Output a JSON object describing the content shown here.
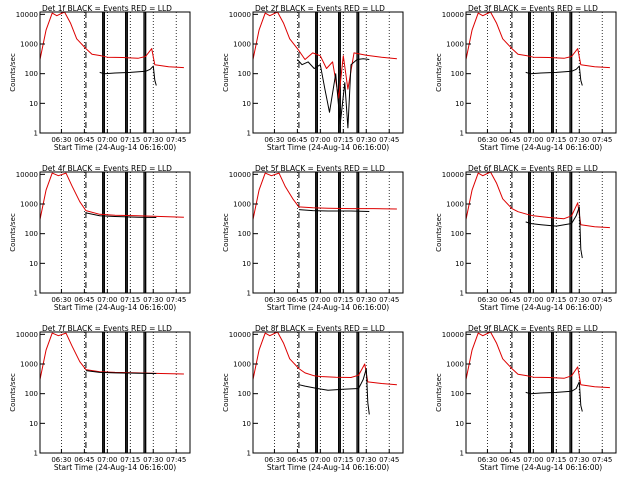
{
  "colors": {
    "events": "#000000",
    "lld": "#dd0000",
    "axes": "#000000"
  },
  "chart_data": [
    {
      "type": "line",
      "title": "Det  1f  BLACK = Events  RED = LLD",
      "xlabel": "Start Time (24-Aug-14 06:16:00)",
      "ylabel": "Counts/sec",
      "yscale": "log",
      "ylim": [
        1,
        12000
      ],
      "xlim": [
        "06:16",
        "07:54"
      ],
      "x_ticks": [
        "06:30",
        "06:45",
        "07:00",
        "07:15",
        "07:30",
        "07:45"
      ],
      "y_ticks": [
        "1",
        "10",
        "100",
        "1000",
        "10000"
      ],
      "series": [
        {
          "name": "LLD",
          "x": [
            "06:16",
            "06:20",
            "06:24",
            "06:27",
            "06:32",
            "06:36",
            "06:40",
            "06:46",
            "06:50",
            "06:56",
            "07:00",
            "07:10",
            "07:20",
            "07:25",
            "07:29",
            "07:31",
            "07:40",
            "07:50"
          ],
          "values": [
            300,
            3000,
            11000,
            9000,
            12000,
            5000,
            1500,
            700,
            450,
            400,
            360,
            350,
            330,
            380,
            700,
            200,
            170,
            160
          ]
        },
        {
          "name": "Events",
          "x": [
            "06:55",
            "06:58",
            "07:05",
            "07:15",
            "07:25",
            "07:28",
            "07:30",
            "07:31",
            "07:32"
          ],
          "values": [
            110,
            100,
            105,
            110,
            120,
            140,
            180,
            60,
            40
          ]
        }
      ]
    },
    {
      "type": "line",
      "title": "Det  2f  BLACK = Events  RED = LLD",
      "xlabel": "Start Time (24-Aug-14 06:16:00)",
      "ylabel": "Counts/sec",
      "yscale": "log",
      "ylim": [
        1,
        12000
      ],
      "xlim": [
        "06:16",
        "07:54"
      ],
      "x_ticks": [
        "06:30",
        "06:45",
        "07:00",
        "07:15",
        "07:30",
        "07:45"
      ],
      "y_ticks": [
        "1",
        "10",
        "100",
        "1000",
        "10000"
      ],
      "series": [
        {
          "name": "LLD",
          "x": [
            "06:16",
            "06:20",
            "06:24",
            "06:27",
            "06:32",
            "06:36",
            "06:40",
            "06:46",
            "06:50",
            "06:55",
            "07:00",
            "07:04",
            "07:08",
            "07:12",
            "07:15",
            "07:18",
            "07:22",
            "07:30",
            "07:40",
            "07:50"
          ],
          "values": [
            300,
            3000,
            11000,
            9000,
            12000,
            5000,
            1500,
            600,
            300,
            500,
            400,
            150,
            250,
            15,
            400,
            30,
            500,
            420,
            360,
            320
          ]
        },
        {
          "name": "Events",
          "x": [
            "06:45",
            "06:48",
            "06:52",
            "06:56",
            "07:00",
            "07:03",
            "07:06",
            "07:10",
            "07:13",
            "07:16",
            "07:18",
            "07:20",
            "07:24",
            "07:28",
            "07:32"
          ],
          "values": [
            300,
            200,
            250,
            150,
            200,
            30,
            5,
            100,
            2,
            50,
            1.5,
            200,
            300,
            320,
            300
          ]
        }
      ]
    },
    {
      "type": "line",
      "title": "Det  3f  BLACK = Events  RED = LLD",
      "xlabel": "Start Time (24-Aug-14 06:16:00)",
      "ylabel": "Counts/sec",
      "yscale": "log",
      "ylim": [
        1,
        12000
      ],
      "xlim": [
        "06:16",
        "07:54"
      ],
      "x_ticks": [
        "06:30",
        "06:45",
        "07:00",
        "07:15",
        "07:30",
        "07:45"
      ],
      "y_ticks": [
        "1",
        "10",
        "100",
        "1000",
        "10000"
      ],
      "series": [
        {
          "name": "LLD",
          "x": [
            "06:16",
            "06:20",
            "06:24",
            "06:27",
            "06:32",
            "06:36",
            "06:40",
            "06:46",
            "06:50",
            "06:56",
            "07:00",
            "07:10",
            "07:20",
            "07:25",
            "07:29",
            "07:31",
            "07:40",
            "07:50"
          ],
          "values": [
            300,
            3000,
            11000,
            9000,
            12000,
            5000,
            1500,
            700,
            450,
            400,
            360,
            350,
            330,
            380,
            700,
            200,
            170,
            160
          ]
        },
        {
          "name": "Events",
          "x": [
            "06:55",
            "06:58",
            "07:05",
            "07:15",
            "07:25",
            "07:28",
            "07:30",
            "07:31",
            "07:32"
          ],
          "values": [
            110,
            100,
            105,
            110,
            120,
            140,
            180,
            60,
            40
          ]
        }
      ]
    },
    {
      "type": "line",
      "title": "Det  4f  BLACK = Events  RED = LLD",
      "xlabel": "Start Time (24-Aug-14 06:16:00)",
      "ylabel": "Counts/sec",
      "yscale": "log",
      "ylim": [
        1,
        12000
      ],
      "xlim": [
        "06:16",
        "07:54"
      ],
      "x_ticks": [
        "06:30",
        "06:45",
        "07:00",
        "07:15",
        "07:30",
        "07:45"
      ],
      "y_ticks": [
        "1",
        "10",
        "100",
        "1000",
        "10000"
      ],
      "series": [
        {
          "name": "LLD",
          "x": [
            "06:16",
            "06:20",
            "06:24",
            "06:28",
            "06:33",
            "06:37",
            "06:42",
            "06:46",
            "06:55",
            "07:05",
            "07:20",
            "07:35",
            "07:50"
          ],
          "values": [
            300,
            3000,
            11000,
            9000,
            11000,
            4000,
            1200,
            600,
            450,
            420,
            400,
            380,
            360
          ]
        },
        {
          "name": "Events",
          "x": [
            "06:46",
            "06:55",
            "07:05",
            "07:20",
            "07:32"
          ],
          "values": [
            500,
            400,
            380,
            360,
            350
          ]
        }
      ]
    },
    {
      "type": "line",
      "title": "Det  5f  BLACK = Events  RED = LLD",
      "xlabel": "Start Time (24-Aug-14 06:16:00)",
      "ylabel": "Counts/sec",
      "yscale": "log",
      "ylim": [
        1,
        12000
      ],
      "xlim": [
        "06:16",
        "07:54"
      ],
      "x_ticks": [
        "06:30",
        "06:45",
        "07:00",
        "07:15",
        "07:30",
        "07:45"
      ],
      "y_ticks": [
        "1",
        "10",
        "100",
        "1000",
        "10000"
      ],
      "series": [
        {
          "name": "LLD",
          "x": [
            "06:16",
            "06:20",
            "06:24",
            "06:28",
            "06:33",
            "06:37",
            "06:42",
            "06:46",
            "06:55",
            "07:05",
            "07:20",
            "07:35",
            "07:50"
          ],
          "values": [
            300,
            3000,
            11000,
            9000,
            11000,
            4000,
            1500,
            800,
            750,
            720,
            700,
            700,
            680
          ]
        },
        {
          "name": "Events",
          "x": [
            "06:46",
            "06:55",
            "07:05",
            "07:20",
            "07:32"
          ],
          "values": [
            650,
            600,
            580,
            580,
            560
          ]
        }
      ]
    },
    {
      "type": "line",
      "title": "Det  6f  BLACK = Events  RED = LLD",
      "xlabel": "Start Time (24-Aug-14 06:16:00)",
      "ylabel": "Counts/sec",
      "yscale": "log",
      "ylim": [
        1,
        12000
      ],
      "xlim": [
        "06:16",
        "07:54"
      ],
      "x_ticks": [
        "06:30",
        "06:45",
        "07:00",
        "07:15",
        "07:30",
        "07:45"
      ],
      "y_ticks": [
        "1",
        "10",
        "100",
        "1000",
        "10000"
      ],
      "series": [
        {
          "name": "LLD",
          "x": [
            "06:16",
            "06:20",
            "06:24",
            "06:27",
            "06:32",
            "06:36",
            "06:40",
            "06:46",
            "06:50",
            "06:56",
            "07:00",
            "07:10",
            "07:20",
            "07:25",
            "07:29",
            "07:31",
            "07:40",
            "07:50"
          ],
          "values": [
            300,
            3000,
            11000,
            9000,
            12000,
            5000,
            1500,
            700,
            550,
            450,
            400,
            350,
            320,
            400,
            1100,
            200,
            170,
            160
          ]
        },
        {
          "name": "Events",
          "x": [
            "06:55",
            "06:58",
            "07:05",
            "07:15",
            "07:25",
            "07:28",
            "07:30",
            "07:31",
            "07:32"
          ],
          "values": [
            250,
            220,
            200,
            180,
            220,
            400,
            800,
            30,
            15
          ]
        }
      ]
    },
    {
      "type": "line",
      "title": "Det  7f  BLACK = Events  RED = LLD",
      "xlabel": "Start Time (24-Aug-14 06:16:00)",
      "ylabel": "Counts/sec",
      "yscale": "log",
      "ylim": [
        1,
        12000
      ],
      "xlim": [
        "06:16",
        "07:54"
      ],
      "x_ticks": [
        "06:30",
        "06:45",
        "07:00",
        "07:15",
        "07:30",
        "07:45"
      ],
      "y_ticks": [
        "1",
        "10",
        "100",
        "1000",
        "10000"
      ],
      "series": [
        {
          "name": "LLD",
          "x": [
            "06:16",
            "06:20",
            "06:24",
            "06:28",
            "06:33",
            "06:37",
            "06:42",
            "06:46",
            "06:55",
            "07:05",
            "07:20",
            "07:35",
            "07:50"
          ],
          "values": [
            300,
            3000,
            11000,
            9000,
            11000,
            4000,
            1200,
            650,
            550,
            520,
            500,
            480,
            460
          ]
        },
        {
          "name": "Events",
          "x": [
            "06:46",
            "06:55",
            "07:05",
            "07:20",
            "07:32"
          ],
          "values": [
            600,
            520,
            500,
            490,
            480
          ]
        }
      ]
    },
    {
      "type": "line",
      "title": "Det  8f  BLACK = Events  RED = LLD",
      "xlabel": "Start Time (24-Aug-14 06:16:00)",
      "ylabel": "Counts/sec",
      "yscale": "log",
      "ylim": [
        1,
        12000
      ],
      "xlim": [
        "06:16",
        "07:54"
      ],
      "x_ticks": [
        "06:30",
        "06:45",
        "07:00",
        "07:15",
        "07:30",
        "07:45"
      ],
      "y_ticks": [
        "1",
        "10",
        "100",
        "1000",
        "10000"
      ],
      "series": [
        {
          "name": "LLD",
          "x": [
            "06:16",
            "06:20",
            "06:24",
            "06:27",
            "06:32",
            "06:36",
            "06:40",
            "06:46",
            "06:50",
            "06:56",
            "07:00",
            "07:10",
            "07:20",
            "07:25",
            "07:29",
            "07:31",
            "07:40",
            "07:50"
          ],
          "values": [
            300,
            3000,
            11000,
            9000,
            12000,
            5000,
            1500,
            700,
            500,
            400,
            380,
            360,
            350,
            420,
            1000,
            250,
            220,
            200
          ]
        },
        {
          "name": "Events",
          "x": [
            "06:46",
            "06:50",
            "06:58",
            "07:05",
            "07:15",
            "07:25",
            "07:28",
            "07:30",
            "07:31",
            "07:32"
          ],
          "values": [
            200,
            180,
            150,
            130,
            140,
            150,
            300,
            700,
            50,
            20
          ]
        }
      ]
    },
    {
      "type": "line",
      "title": "Det  9f  BLACK = Events  RED = LLD",
      "xlabel": "Start Time (24-Aug-14 06:16:00)",
      "ylabel": "Counts/sec",
      "yscale": "log",
      "ylim": [
        1,
        12000
      ],
      "xlim": [
        "06:16",
        "07:54"
      ],
      "x_ticks": [
        "06:30",
        "06:45",
        "07:00",
        "07:15",
        "07:30",
        "07:45"
      ],
      "y_ticks": [
        "1",
        "10",
        "100",
        "1000",
        "10000"
      ],
      "series": [
        {
          "name": "LLD",
          "x": [
            "06:16",
            "06:20",
            "06:24",
            "06:27",
            "06:32",
            "06:36",
            "06:40",
            "06:46",
            "06:50",
            "06:56",
            "07:00",
            "07:10",
            "07:20",
            "07:25",
            "07:29",
            "07:31",
            "07:40",
            "07:50"
          ],
          "values": [
            300,
            3000,
            11000,
            9000,
            12000,
            5000,
            1500,
            700,
            450,
            400,
            360,
            350,
            330,
            400,
            800,
            200,
            170,
            160
          ]
        },
        {
          "name": "Events",
          "x": [
            "06:55",
            "06:58",
            "07:05",
            "07:15",
            "07:25",
            "07:28",
            "07:30",
            "07:31",
            "07:32"
          ],
          "values": [
            110,
            100,
            105,
            110,
            120,
            150,
            250,
            40,
            25
          ]
        }
      ]
    }
  ],
  "markers": {
    "dotted_times": [
      "06:30",
      "06:45",
      "07:00",
      "07:15",
      "07:30",
      "07:45"
    ],
    "dashed_time": "06:46",
    "solid_times": [
      "06:57",
      "06:58",
      "07:12",
      "07:13",
      "07:24",
      "07:25"
    ]
  }
}
